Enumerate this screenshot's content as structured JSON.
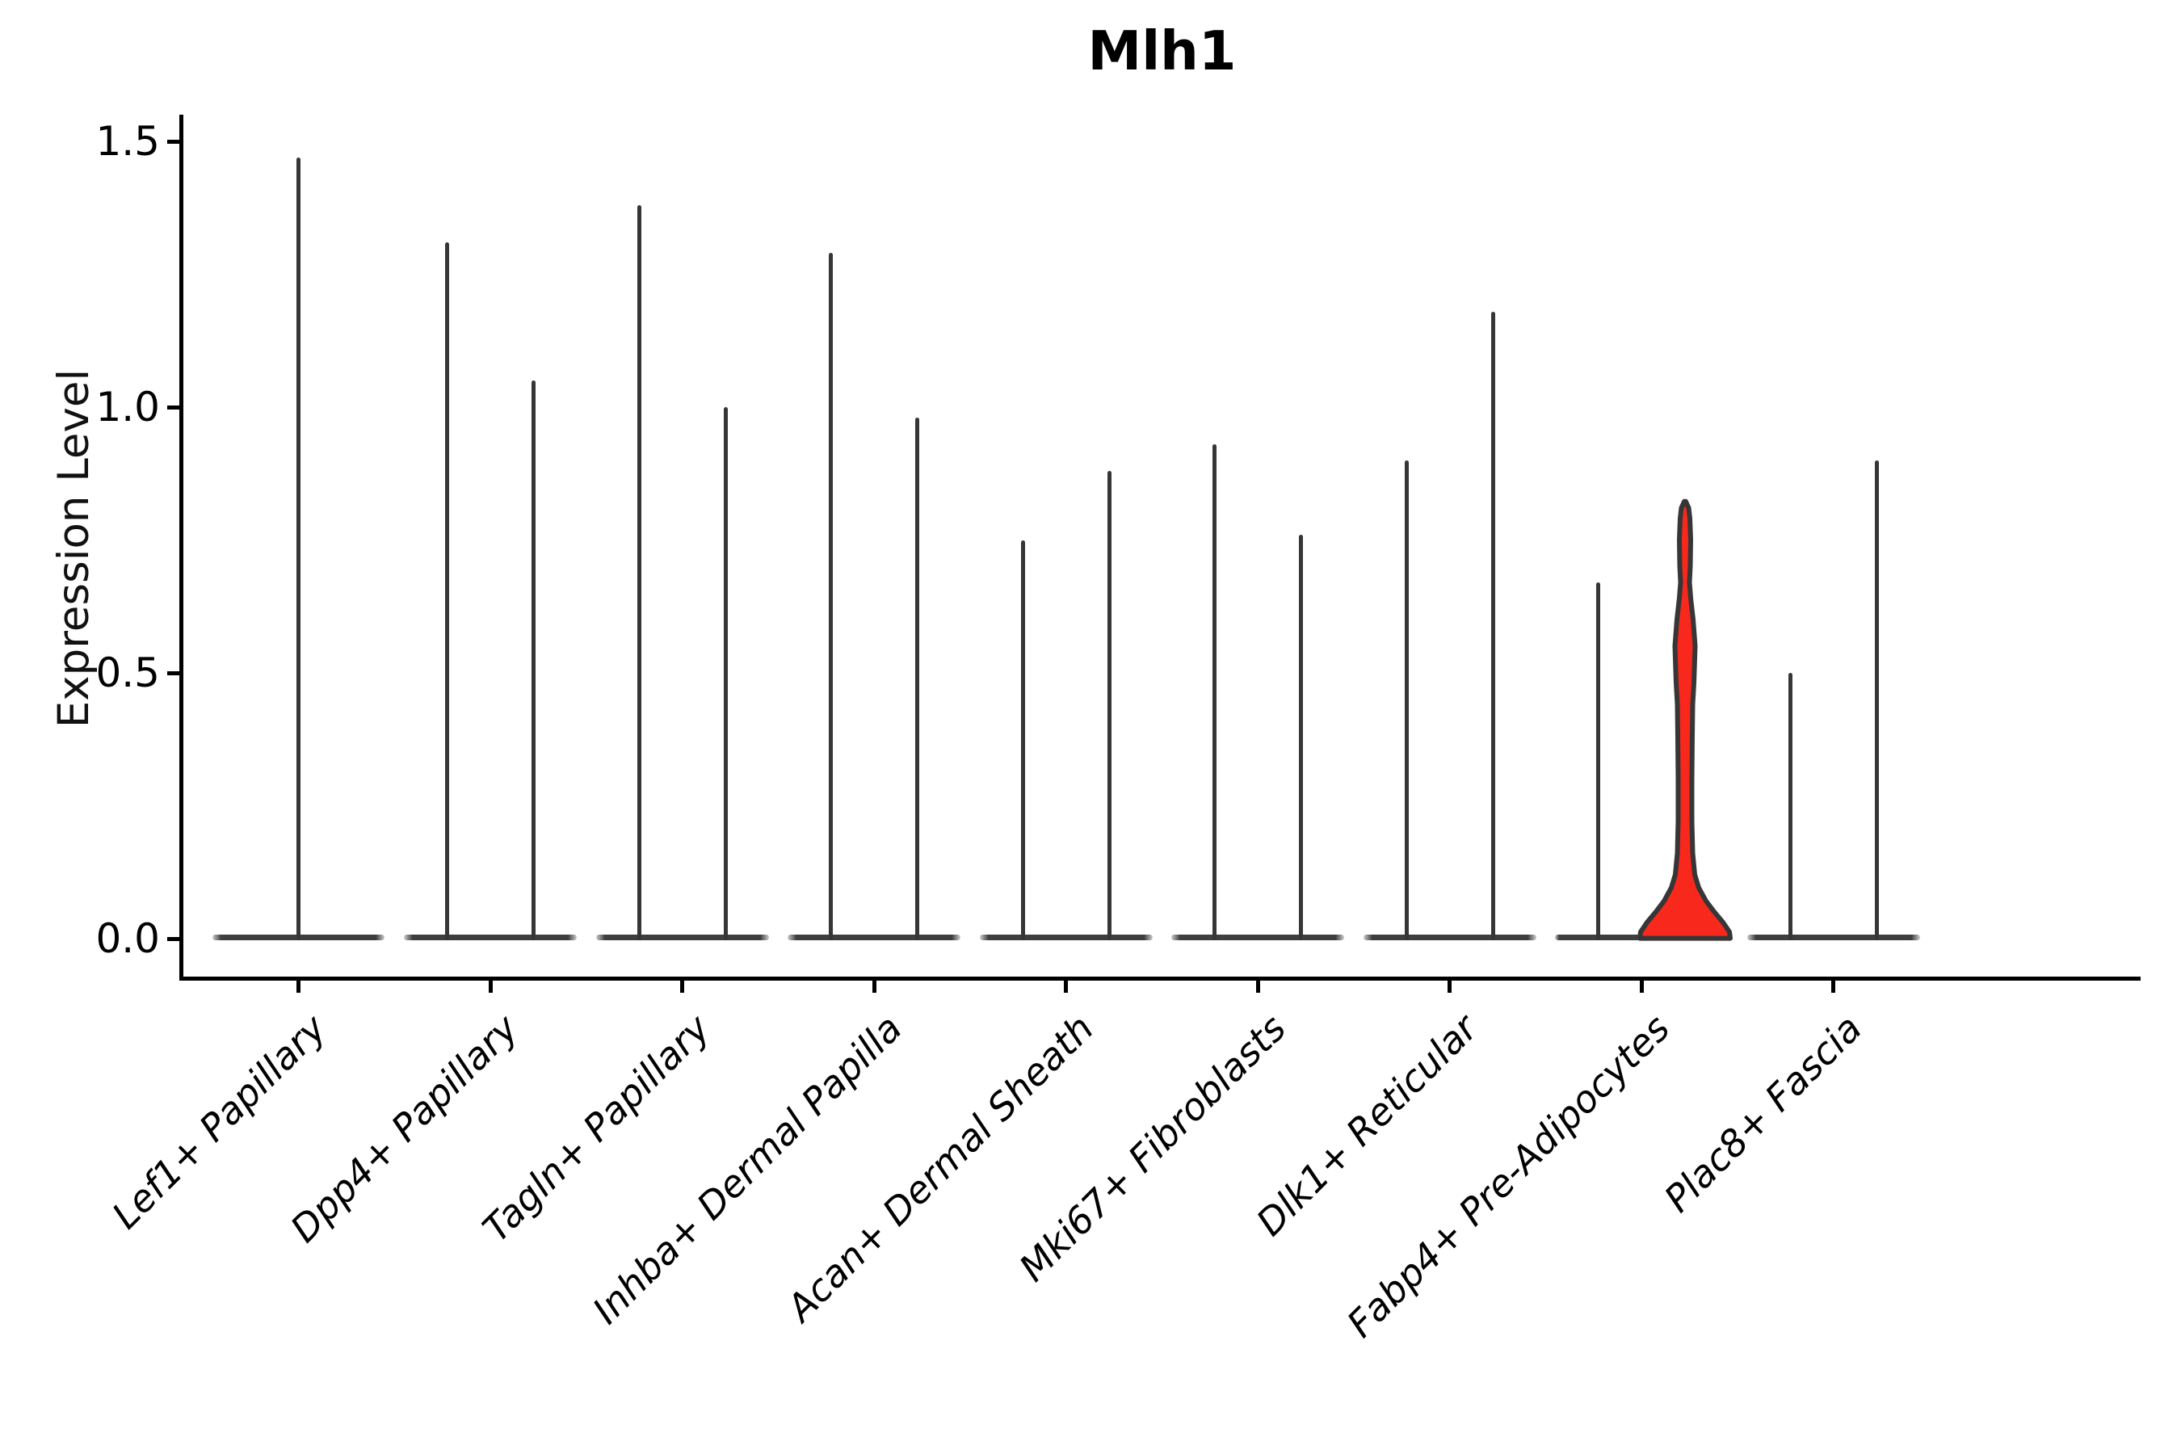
{
  "title": "Mlh1",
  "y_axis": {
    "label": "Expression Level",
    "tick_labels": [
      "0.0",
      "0.5",
      "1.0",
      "1.5"
    ]
  },
  "chart_data": {
    "type": "violin",
    "title": "Mlh1",
    "xlabel": "",
    "ylabel": "Expression Level",
    "yticks": [
      0.0,
      0.5,
      1.0,
      1.5
    ],
    "ylim": [
      -0.071,
      1.55
    ],
    "grid": false,
    "legend": "none",
    "categories": [
      "Lef1+ Papillary",
      "Dpp4+ Papillary",
      "Tagln+ Papillary",
      "Inhba+ Dermal Papilla",
      "Acan+ Dermal Sheath",
      "Mki67+ Fibroblasts",
      "Dlk1+ Reticular",
      "Fabp4+ Pre-Adipocytes",
      "Plac8+ Fascia"
    ],
    "description": "Violin plot of Mlh1 expression; nearly all cells at 0 so violins collapse to a flat base bar with a thin spike to the max expression value. Categories 2-9 contain two side-by-side violins; category 1 has a single full-width violin. The right violin of Fabp4+ Pre-Adipocytes is highlighted red with a visible density bulge.",
    "violins": [
      {
        "category": "Lef1+ Papillary",
        "slot": 0,
        "pos": "full",
        "max": 1.47
      },
      {
        "category": "Dpp4+ Papillary",
        "slot": 1,
        "pos": "left",
        "max": 1.31
      },
      {
        "category": "Dpp4+ Papillary",
        "slot": 1,
        "pos": "right",
        "max": 1.05
      },
      {
        "category": "Tagln+ Papillary",
        "slot": 2,
        "pos": "left",
        "max": 1.38
      },
      {
        "category": "Tagln+ Papillary",
        "slot": 2,
        "pos": "right",
        "max": 1.0
      },
      {
        "category": "Inhba+ Dermal Papilla",
        "slot": 3,
        "pos": "left",
        "max": 1.29
      },
      {
        "category": "Inhba+ Dermal Papilla",
        "slot": 3,
        "pos": "right",
        "max": 0.98
      },
      {
        "category": "Acan+ Dermal Sheath",
        "slot": 4,
        "pos": "left",
        "max": 0.75
      },
      {
        "category": "Acan+ Dermal Sheath",
        "slot": 4,
        "pos": "right",
        "max": 0.88
      },
      {
        "category": "Mki67+ Fibroblasts",
        "slot": 5,
        "pos": "left",
        "max": 0.93
      },
      {
        "category": "Mki67+ Fibroblasts",
        "slot": 5,
        "pos": "right",
        "max": 0.76
      },
      {
        "category": "Dlk1+ Reticular",
        "slot": 6,
        "pos": "left",
        "max": 0.9
      },
      {
        "category": "Dlk1+ Reticular",
        "slot": 6,
        "pos": "right",
        "max": 1.18
      },
      {
        "category": "Fabp4+ Pre-Adipocytes",
        "slot": 7,
        "pos": "left",
        "max": 0.67
      },
      {
        "category": "Fabp4+ Pre-Adipocytes",
        "slot": 7,
        "pos": "right",
        "max": 0.82,
        "highlight": true,
        "profile": [
          [
            0.0,
            56
          ],
          [
            0.012,
            55
          ],
          [
            0.03,
            47
          ],
          [
            0.05,
            36
          ],
          [
            0.07,
            26
          ],
          [
            0.095,
            17
          ],
          [
            0.12,
            12
          ],
          [
            0.16,
            9.5
          ],
          [
            0.22,
            8.5
          ],
          [
            0.3,
            8.5
          ],
          [
            0.38,
            9
          ],
          [
            0.44,
            9.5
          ],
          [
            0.48,
            11
          ],
          [
            0.55,
            12.5
          ],
          [
            0.6,
            10
          ],
          [
            0.64,
            7
          ],
          [
            0.67,
            5.5
          ],
          [
            0.7,
            6.5
          ],
          [
            0.75,
            7
          ],
          [
            0.79,
            6
          ],
          [
            0.81,
            4.5
          ],
          [
            0.822,
            0.8
          ]
        ]
      },
      {
        "category": "Plac8+ Fascia",
        "slot": 8,
        "pos": "left",
        "max": 0.5
      },
      {
        "category": "Plac8+ Fascia",
        "slot": 8,
        "pos": "right",
        "max": 0.9
      }
    ],
    "colors": {
      "violin_outline": "#363636",
      "base_bar": "#3e3e3e",
      "highlight_fill": "#f8281c",
      "axis": "#000000",
      "text": "#000000"
    }
  }
}
